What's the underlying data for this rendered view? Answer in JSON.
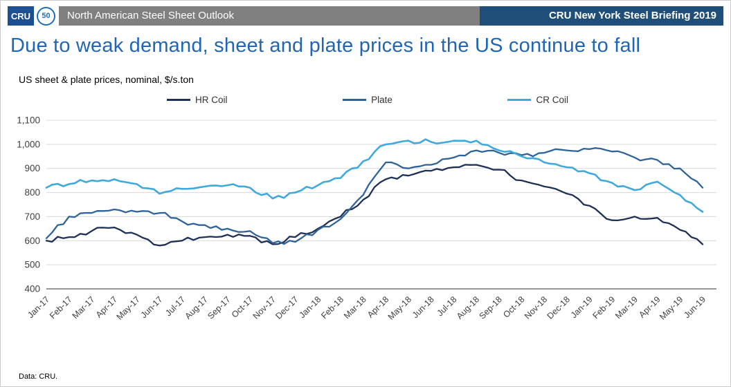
{
  "header": {
    "logo": "CRU",
    "badge": "50",
    "left_title": "North American Steel Sheet Outlook",
    "right_title": "CRU New York Steel Briefing 2019"
  },
  "title": "Due to weak demand, sheet and plate prices in the US continue to fall",
  "subtitle": "US sheet & plate prices, nominal, $/s.ton",
  "footer": "Data: CRU.",
  "colors": {
    "hr_coil": "#1f3056",
    "plate": "#2e6399",
    "cr_coil": "#3fa9dc",
    "title_blue": "#2165b5",
    "header_blue": "#1f4e79",
    "header_gray": "#808080",
    "gridline": "#d9d9d9",
    "axis": "#595959"
  },
  "chart_data": {
    "type": "line",
    "title": "US sheet & plate prices, nominal, $/s.ton",
    "xlabel": "",
    "ylabel": "",
    "ylim": [
      400,
      1100
    ],
    "ytick_step": 100,
    "grid": true,
    "legend_position": "top",
    "x": [
      "Jan-17",
      "Feb-17",
      "Mar-17",
      "Apr-17",
      "May-17",
      "Jun-17",
      "Jul-17",
      "Aug-17",
      "Sep-17",
      "Oct-17",
      "Nov-17",
      "Dec-17",
      "Jan-18",
      "Feb-18",
      "Mar-18",
      "Apr-18",
      "May-18",
      "Jun-18",
      "Jul-18",
      "Aug-18",
      "Sep-18",
      "Oct-18",
      "Nov-18",
      "Dec-18",
      "Jan-19",
      "Feb-19",
      "Mar-19",
      "Apr-19",
      "May-19",
      "Jun-19"
    ],
    "series": [
      {
        "name": "HR Coil",
        "color_key": "hr_coil",
        "values": [
          600,
          615,
          640,
          655,
          625,
          580,
          600,
          615,
          625,
          620,
          585,
          615,
          650,
          700,
          770,
          855,
          870,
          890,
          905,
          915,
          895,
          850,
          825,
          795,
          745,
          685,
          700,
          695,
          645,
          585
        ]
      },
      {
        "name": "Plate",
        "color_key": "plate",
        "values": [
          610,
          700,
          715,
          730,
          720,
          715,
          680,
          665,
          650,
          640,
          590,
          595,
          645,
          690,
          790,
          925,
          900,
          915,
          945,
          975,
          965,
          955,
          965,
          975,
          980,
          970,
          945,
          935,
          900,
          820
        ]
      },
      {
        "name": "CR Coil",
        "color_key": "cr_coil",
        "values": [
          820,
          835,
          850,
          855,
          835,
          795,
          815,
          825,
          830,
          820,
          775,
          800,
          830,
          860,
          930,
          1000,
          1015,
          1010,
          1015,
          1015,
          975,
          950,
          925,
          905,
          880,
          840,
          810,
          845,
          790,
          720
        ]
      }
    ]
  }
}
